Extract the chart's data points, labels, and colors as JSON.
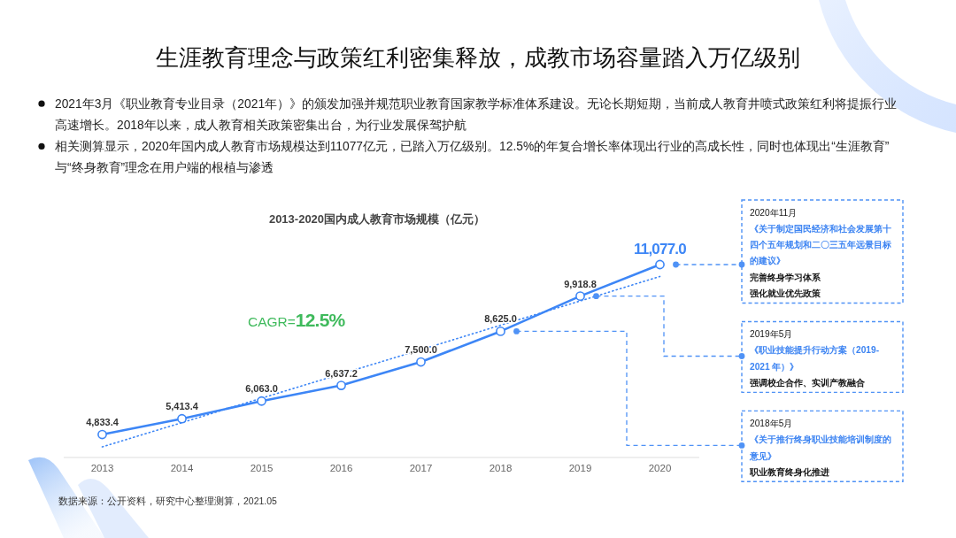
{
  "chart_data": {
    "type": "line",
    "title": "生涯教育理念与政策红利密集释放，成教市场容量踏入万亿级别",
    "subtitle": "2013-2020国内成人教育市场规模（亿元）",
    "tick_labels": "x",
    "categories": [
      "2013",
      "2014",
      "2015",
      "2016",
      "2017",
      "2018",
      "2019",
      "2020"
    ],
    "series": [
      {
        "color": "#3d86f6",
        "line_style": "dotted",
        "marker": "none",
        "values": [
          4380,
          5270,
          6170,
          7060,
          7950,
          8850,
          9740,
          10640
        ]
      },
      {
        "color": "#3d86f6",
        "line_style": "solid",
        "marker": "circle",
        "values": [
          4833.4,
          5413.4,
          6063.0,
          6637.2,
          7500.0,
          8625.0,
          9918.8,
          11077.0
        ],
        "value_labels": [
          "4,833.4",
          "5,413.4",
          "6,063.0",
          "6,637.2",
          "7,500.0",
          "8,625.0",
          "9,918.8",
          "11,077.0"
        ]
      }
    ],
    "annotations": [
      "2021年3月《职业教育专业目录（2021年）》的颁发加强并规范职业教育国家教学标准体系建设。无论长期短期，当前成人教育井喷式政策红利将提振行业高速增长。2018年以来，成人教育相关政策密集出台，为行业发展保驾护航",
      "相关测算显示，2020年国内成人教育市场规模达到11077亿元，已踏入万亿级别。12.5%的年复合增长率体现出行业的高成长性，同时也体现出“生涯教育”与“终身教育”理念在用户端的根植与渗透",
      "CAGR=12.5%",
      "2020年11月",
      "《关于制定国民经济和社会发展第十四个五年规划和二〇三五年远景目标的建议》",
      "完善终身学习体系",
      "强化就业优先政策",
      "2019年5月",
      "《职业技能提升行动方案（2019-2021 年）》",
      "强调校企合作、实训产教融合",
      "2018年5月",
      "《关于推行终身职业技能培训制度的意见》",
      "职业教育终身化推进",
      "数据来源：公开资料，研究中心整理测算，2021.05"
    ]
  }
}
